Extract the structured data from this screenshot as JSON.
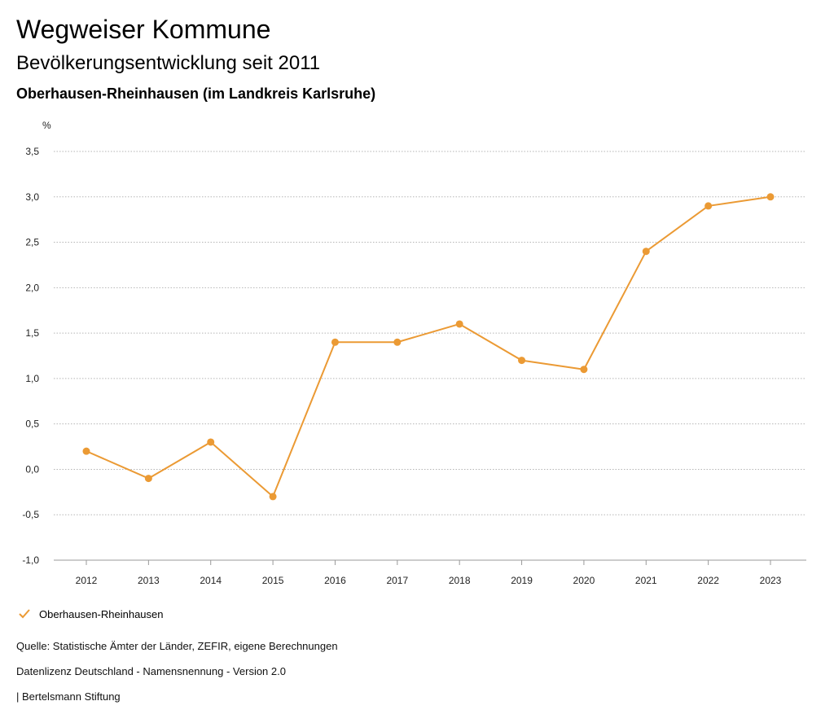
{
  "header": {
    "title": "Wegweiser Kommune",
    "subtitle": "Bevölkerungsentwicklung seit 2011",
    "region": "Oberhausen-Rheinhausen (im Landkreis Karlsruhe)"
  },
  "chart_data": {
    "type": "line",
    "y_unit": "%",
    "x": [
      "2012",
      "2013",
      "2014",
      "2015",
      "2016",
      "2017",
      "2018",
      "2019",
      "2020",
      "2021",
      "2022",
      "2023"
    ],
    "series": [
      {
        "name": "Oberhausen-Rheinhausen",
        "values": [
          0.2,
          -0.1,
          0.3,
          -0.3,
          1.4,
          1.4,
          1.6,
          1.2,
          1.1,
          2.4,
          2.9,
          3.0
        ]
      }
    ],
    "ylim": [
      -1.0,
      3.5
    ],
    "yticks": [
      -1.0,
      -0.5,
      0.0,
      0.5,
      1.0,
      1.5,
      2.0,
      2.5,
      3.0,
      3.5
    ],
    "ytick_labels": [
      "-1,0",
      "-0,5",
      "0,0",
      "0,5",
      "1,0",
      "1,5",
      "2,0",
      "2,5",
      "3,0",
      "3,5"
    ],
    "grid": true,
    "legend": "bottom-left",
    "color": "#eb9a34"
  },
  "footer": {
    "source": "Quelle: Statistische Ämter der Länder, ZEFIR, eigene Berechnungen",
    "license": "Datenlizenz Deutschland - Namensnennung - Version 2.0",
    "publisher": "| Bertelsmann Stiftung"
  }
}
